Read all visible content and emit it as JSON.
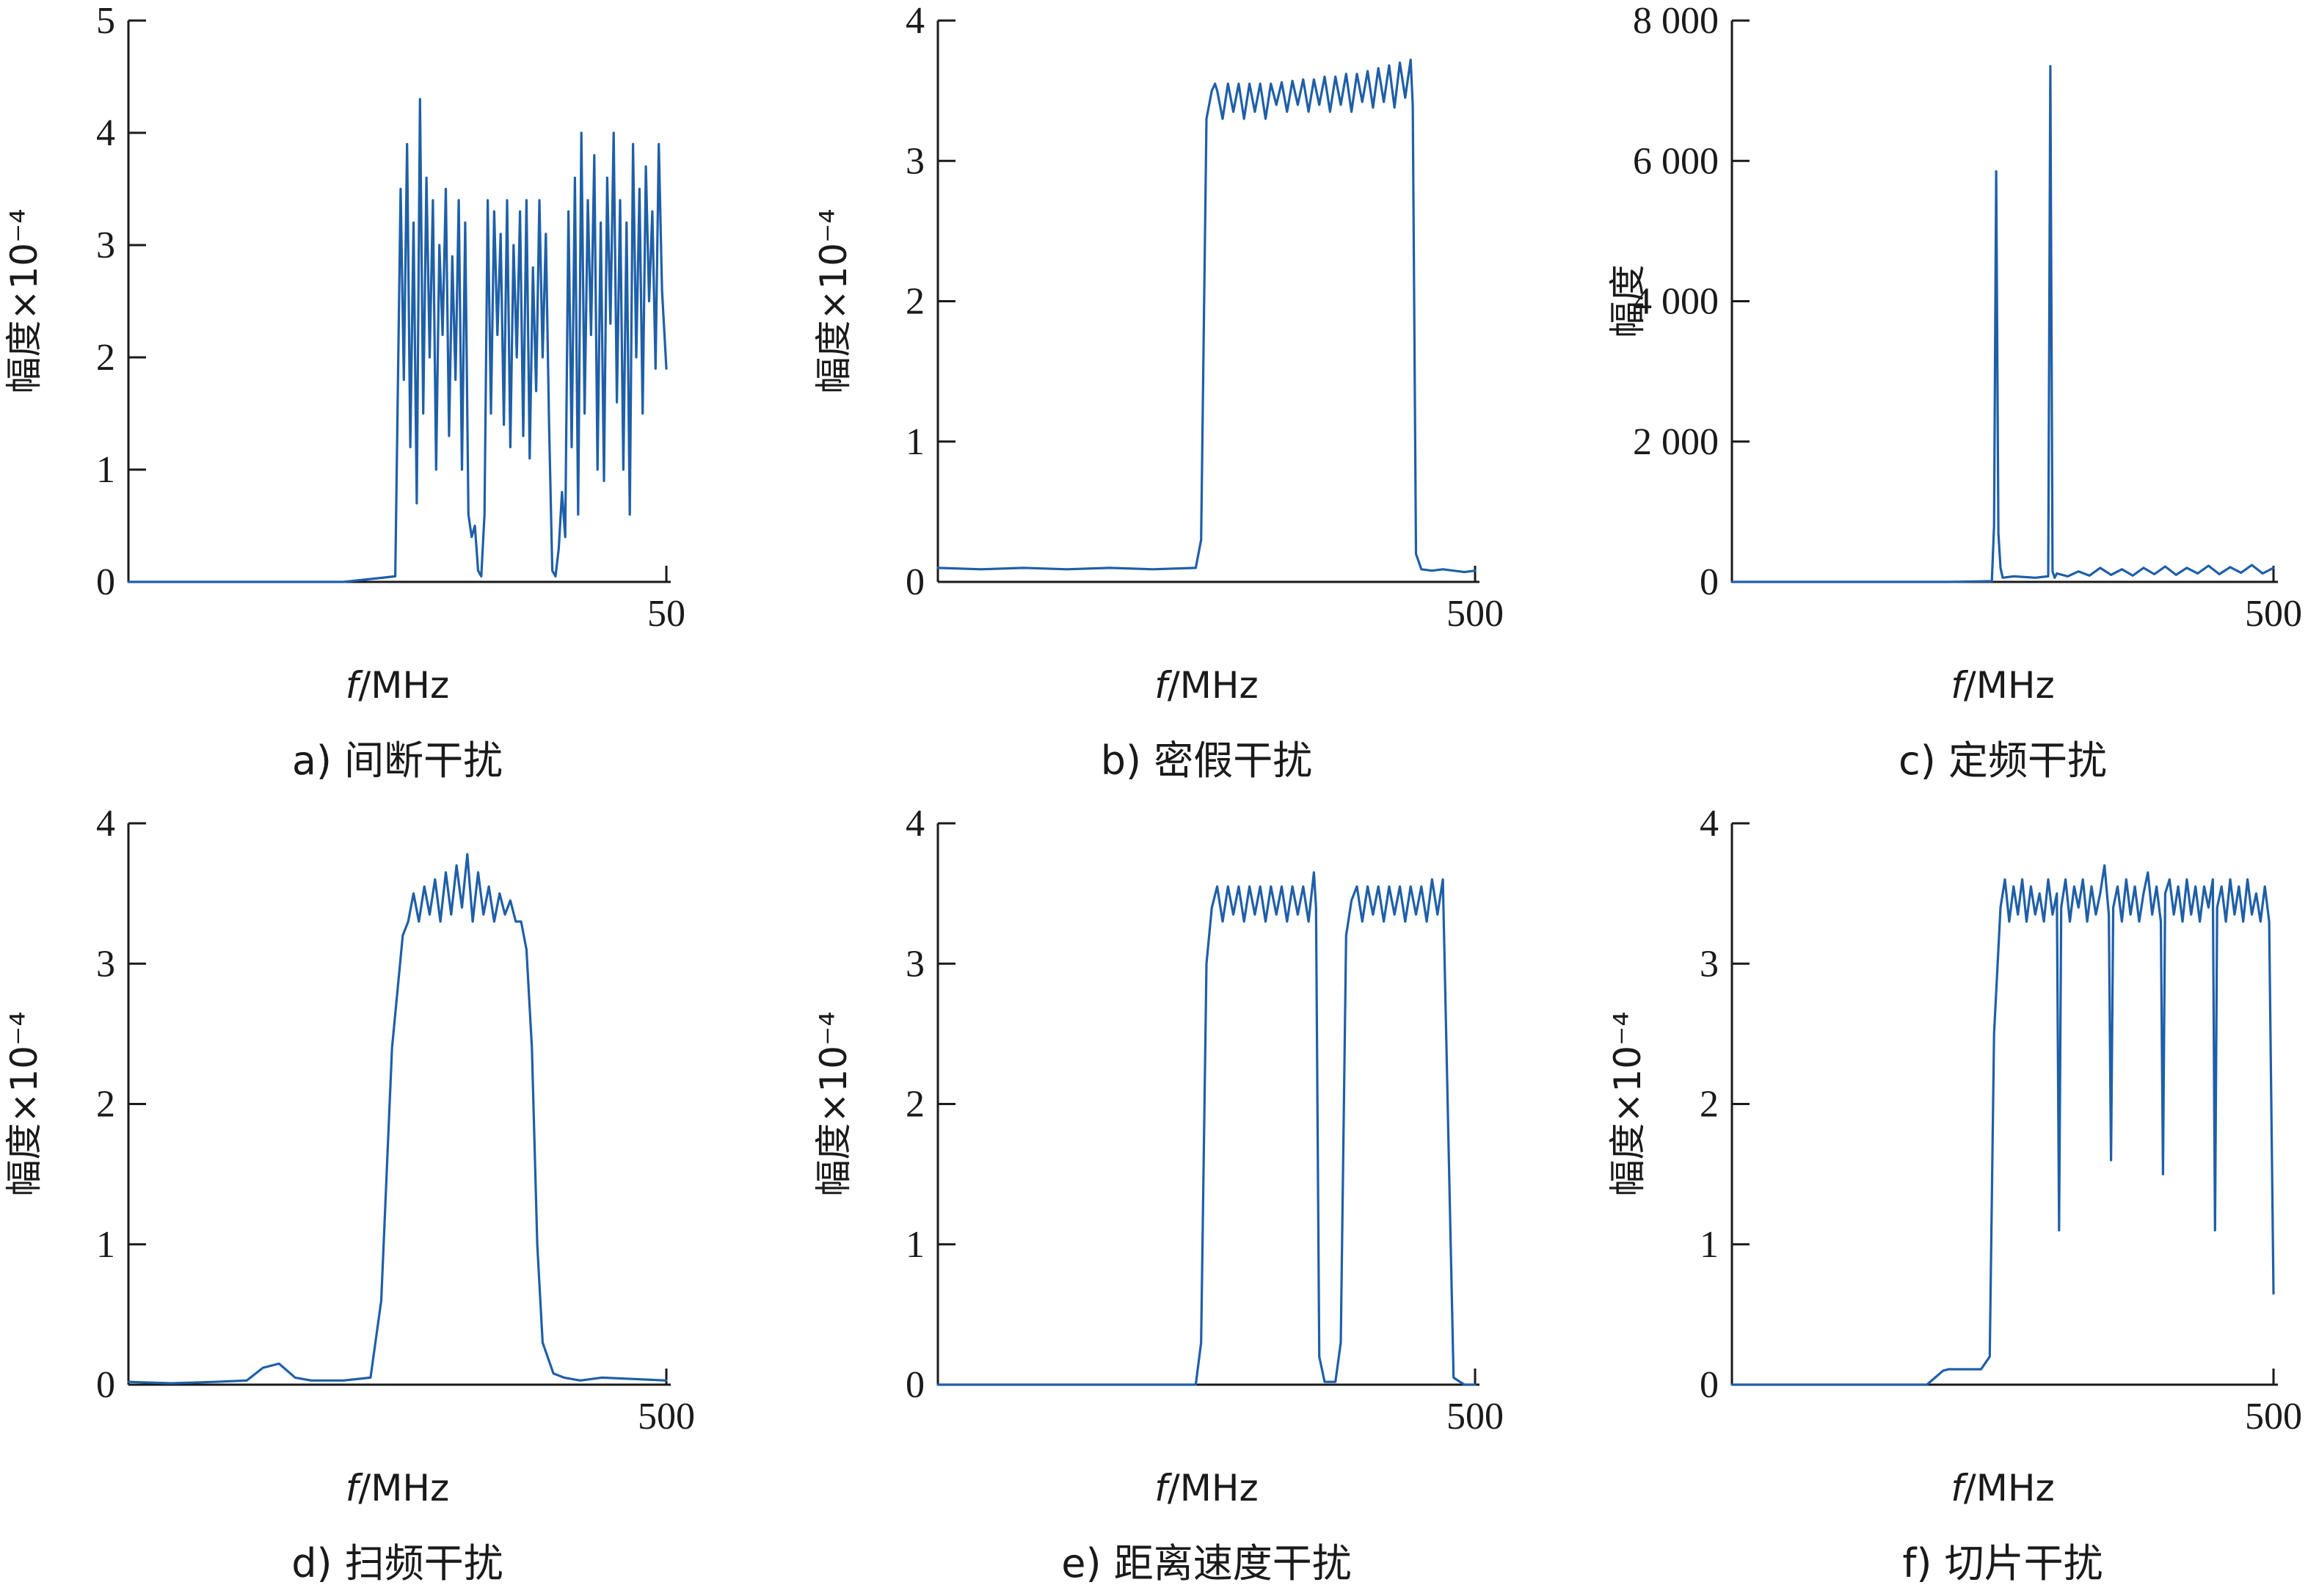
{
  "chart_data": [
    {
      "type": "line",
      "caption": "a) 间断干扰",
      "ylabel": "幅度×10⁻⁴",
      "xlabel_italic": "f",
      "xlabel_rest": "/MHz",
      "xlim": [
        0,
        50
      ],
      "ylim": [
        0,
        5
      ],
      "yticks": [
        0,
        1,
        2,
        3,
        4,
        5
      ],
      "ytick_labels": [
        "0",
        "1",
        "2",
        "3",
        "4",
        "5"
      ],
      "xticks": [
        50
      ],
      "xtick_labels": [
        "50"
      ],
      "color": "#1f5fa8",
      "x": [
        0,
        20,
        24.8,
        25.3,
        25.6,
        25.9,
        26.2,
        26.5,
        26.8,
        27.1,
        27.4,
        27.7,
        28.0,
        28.3,
        28.6,
        28.9,
        29.2,
        29.5,
        29.8,
        30.1,
        30.4,
        30.7,
        31.0,
        31.3,
        31.6,
        31.9,
        32.2,
        32.5,
        32.8,
        33.1,
        33.4,
        33.7,
        34.0,
        34.3,
        34.6,
        34.9,
        35.2,
        35.5,
        35.8,
        36.1,
        36.4,
        36.7,
        37.0,
        37.3,
        37.6,
        37.9,
        38.2,
        38.5,
        38.8,
        39.1,
        39.4,
        39.7,
        40.0,
        40.3,
        40.6,
        40.9,
        41.2,
        41.5,
        41.8,
        42.1,
        42.4,
        42.7,
        43.0,
        43.3,
        43.6,
        43.9,
        44.2,
        44.5,
        44.8,
        45.1,
        45.4,
        45.7,
        46.0,
        46.3,
        46.6,
        46.9,
        47.2,
        47.5,
        47.8,
        48.1,
        48.4,
        48.7,
        49.0,
        49.3,
        49.6,
        50
      ],
      "y": [
        0,
        0,
        0.05,
        3.5,
        1.8,
        3.9,
        1.2,
        3.2,
        0.7,
        4.3,
        1.5,
        3.6,
        2.0,
        3.4,
        1.0,
        3.0,
        2.2,
        3.5,
        1.3,
        2.9,
        1.8,
        3.4,
        1.0,
        3.2,
        0.6,
        0.4,
        0.5,
        0.1,
        0.05,
        0.6,
        3.4,
        1.5,
        3.3,
        2.2,
        3.1,
        1.4,
        3.4,
        1.2,
        3.0,
        2.0,
        3.3,
        1.3,
        3.4,
        1.1,
        2.8,
        1.7,
        3.4,
        2.0,
        3.1,
        1.4,
        0.1,
        0.05,
        0.3,
        0.8,
        0.4,
        3.3,
        1.2,
        3.6,
        0.6,
        4.0,
        1.5,
        3.4,
        2.2,
        3.8,
        1.0,
        3.2,
        0.9,
        3.6,
        2.3,
        4.0,
        1.6,
        3.4,
        1.0,
        3.2,
        0.6,
        3.9,
        2.0,
        3.5,
        1.5,
        3.7,
        2.5,
        3.3,
        1.9,
        3.9,
        2.6,
        1.9
      ]
    },
    {
      "type": "line",
      "caption": "b) 密假干扰",
      "ylabel": "幅度×10⁻⁴",
      "xlabel_italic": "f",
      "xlabel_rest": "/MHz",
      "xlim": [
        0,
        500
      ],
      "ylim": [
        0,
        4
      ],
      "yticks": [
        0,
        1,
        2,
        3,
        4
      ],
      "ytick_labels": [
        "0",
        "1",
        "2",
        "3",
        "4"
      ],
      "xticks": [
        500
      ],
      "xtick_labels": [
        "500"
      ],
      "color": "#1f5fa8",
      "x": [
        0,
        40,
        80,
        120,
        160,
        200,
        240,
        245,
        250,
        255,
        258,
        260,
        265,
        270,
        275,
        280,
        285,
        290,
        295,
        300,
        305,
        310,
        315,
        320,
        325,
        330,
        335,
        340,
        345,
        350,
        355,
        360,
        365,
        370,
        375,
        380,
        385,
        390,
        395,
        400,
        405,
        410,
        415,
        420,
        425,
        430,
        435,
        440,
        442,
        445,
        450,
        460,
        470,
        480,
        490,
        500
      ],
      "y": [
        0.1,
        0.09,
        0.1,
        0.09,
        0.1,
        0.09,
        0.1,
        0.3,
        3.3,
        3.5,
        3.55,
        3.5,
        3.3,
        3.55,
        3.35,
        3.55,
        3.3,
        3.55,
        3.35,
        3.55,
        3.3,
        3.55,
        3.4,
        3.56,
        3.35,
        3.57,
        3.4,
        3.58,
        3.35,
        3.58,
        3.4,
        3.6,
        3.35,
        3.6,
        3.4,
        3.62,
        3.35,
        3.62,
        3.42,
        3.64,
        3.38,
        3.66,
        3.42,
        3.68,
        3.38,
        3.7,
        3.45,
        3.72,
        3.4,
        0.2,
        0.09,
        0.08,
        0.09,
        0.08,
        0.07,
        0.08
      ]
    },
    {
      "type": "line",
      "caption": "c) 定频干扰",
      "ylabel": "幅度",
      "xlabel_italic": "f",
      "xlabel_rest": "/MHz",
      "xlim": [
        0,
        500
      ],
      "ylim": [
        0,
        8000
      ],
      "yticks": [
        0,
        2000,
        4000,
        6000,
        8000
      ],
      "ytick_labels": [
        "0",
        "2 000",
        "4 000",
        "6 000",
        "8 000"
      ],
      "xticks": [
        500
      ],
      "xtick_labels": [
        "500"
      ],
      "color": "#1f5fa8",
      "x": [
        0,
        100,
        200,
        240,
        242,
        244,
        246,
        248,
        250,
        260,
        280,
        292,
        294,
        296,
        298,
        300,
        310,
        320,
        330,
        340,
        350,
        360,
        370,
        380,
        390,
        400,
        410,
        420,
        430,
        440,
        450,
        460,
        470,
        480,
        490,
        500
      ],
      "y": [
        0,
        0,
        0,
        10,
        800,
        5850,
        700,
        200,
        60,
        80,
        60,
        80,
        7350,
        150,
        60,
        120,
        80,
        150,
        90,
        200,
        100,
        180,
        90,
        200,
        110,
        220,
        100,
        200,
        120,
        230,
        110,
        210,
        130,
        240,
        120,
        200
      ]
    },
    {
      "type": "line",
      "caption": "d) 扫频干扰",
      "ylabel": "幅度×10⁻⁴",
      "xlabel_italic": "f",
      "xlabel_rest": "/MHz",
      "xlim": [
        0,
        500
      ],
      "ylim": [
        0,
        4
      ],
      "yticks": [
        0,
        1,
        2,
        3,
        4
      ],
      "ytick_labels": [
        "0",
        "1",
        "2",
        "3",
        "4"
      ],
      "xticks": [
        500
      ],
      "xtick_labels": [
        "500"
      ],
      "color": "#1f5fa8",
      "x": [
        0,
        40,
        80,
        110,
        125,
        140,
        155,
        170,
        200,
        225,
        235,
        245,
        255,
        260,
        265,
        270,
        275,
        280,
        285,
        290,
        295,
        300,
        305,
        310,
        315,
        320,
        325,
        330,
        335,
        340,
        345,
        350,
        355,
        360,
        365,
        370,
        375,
        380,
        385,
        395,
        405,
        420,
        440,
        470,
        500
      ],
      "y": [
        0.02,
        0.01,
        0.02,
        0.03,
        0.12,
        0.15,
        0.05,
        0.03,
        0.03,
        0.05,
        0.6,
        2.4,
        3.2,
        3.3,
        3.5,
        3.3,
        3.55,
        3.35,
        3.6,
        3.3,
        3.65,
        3.35,
        3.7,
        3.4,
        3.78,
        3.3,
        3.65,
        3.35,
        3.55,
        3.3,
        3.5,
        3.35,
        3.45,
        3.3,
        3.3,
        3.1,
        2.4,
        1.0,
        0.3,
        0.08,
        0.05,
        0.03,
        0.05,
        0.04,
        0.03
      ]
    },
    {
      "type": "line",
      "caption": "e) 距离速度干扰",
      "ylabel": "幅度×10⁻⁴",
      "xlabel_italic": "f",
      "xlabel_rest": "/MHz",
      "xlim": [
        0,
        500
      ],
      "ylim": [
        0,
        4
      ],
      "yticks": [
        0,
        1,
        2,
        3,
        4
      ],
      "ytick_labels": [
        "0",
        "1",
        "2",
        "3",
        "4"
      ],
      "xticks": [
        500
      ],
      "xtick_labels": [
        "500"
      ],
      "color": "#1f5fa8",
      "x": [
        0,
        80,
        160,
        240,
        245,
        250,
        255,
        260,
        265,
        270,
        275,
        280,
        285,
        290,
        295,
        300,
        305,
        310,
        315,
        320,
        325,
        330,
        335,
        340,
        345,
        350,
        352,
        355,
        360,
        370,
        375,
        380,
        385,
        390,
        395,
        400,
        405,
        410,
        415,
        420,
        425,
        430,
        435,
        440,
        445,
        450,
        455,
        460,
        465,
        470,
        480,
        490,
        500
      ],
      "y": [
        0,
        0,
        0,
        0,
        0.3,
        3.0,
        3.4,
        3.55,
        3.3,
        3.55,
        3.35,
        3.55,
        3.3,
        3.55,
        3.35,
        3.55,
        3.3,
        3.55,
        3.35,
        3.55,
        3.3,
        3.55,
        3.35,
        3.55,
        3.3,
        3.65,
        3.4,
        0.2,
        0.02,
        0.02,
        0.3,
        3.2,
        3.45,
        3.55,
        3.3,
        3.55,
        3.35,
        3.55,
        3.3,
        3.55,
        3.35,
        3.55,
        3.3,
        3.55,
        3.35,
        3.55,
        3.3,
        3.6,
        3.35,
        3.6,
        0.05,
        0,
        0
      ]
    },
    {
      "type": "line",
      "caption": "f) 切片干扰",
      "ylabel": "幅度×10⁻⁴",
      "xlabel_italic": "f",
      "xlabel_rest": "/MHz",
      "xlim": [
        0,
        500
      ],
      "ylim": [
        0,
        4
      ],
      "yticks": [
        0,
        1,
        2,
        3,
        4
      ],
      "ytick_labels": [
        "0",
        "1",
        "2",
        "3",
        "4"
      ],
      "xticks": [
        500
      ],
      "xtick_labels": [
        "500"
      ],
      "color": "#1f5fa8",
      "x": [
        0,
        60,
        120,
        180,
        195,
        200,
        230,
        238,
        242,
        248,
        252,
        256,
        260,
        264,
        268,
        272,
        276,
        280,
        284,
        288,
        292,
        296,
        300,
        302,
        304,
        308,
        312,
        316,
        320,
        324,
        328,
        332,
        336,
        340,
        344,
        348,
        350,
        352,
        356,
        360,
        364,
        368,
        372,
        376,
        380,
        384,
        388,
        392,
        396,
        398,
        400,
        404,
        408,
        412,
        416,
        420,
        424,
        428,
        432,
        436,
        440,
        444,
        446,
        448,
        452,
        456,
        460,
        464,
        468,
        472,
        476,
        480,
        484,
        488,
        492,
        496,
        500
      ],
      "y": [
        0,
        0,
        0,
        0,
        0.1,
        0.11,
        0.11,
        0.2,
        2.5,
        3.4,
        3.6,
        3.3,
        3.55,
        3.35,
        3.6,
        3.3,
        3.55,
        3.35,
        3.5,
        3.3,
        3.6,
        3.35,
        3.5,
        1.1,
        3.4,
        3.6,
        3.3,
        3.55,
        3.4,
        3.6,
        3.3,
        3.55,
        3.35,
        3.5,
        3.7,
        3.35,
        1.6,
        3.4,
        3.55,
        3.3,
        3.6,
        3.35,
        3.55,
        3.3,
        3.5,
        3.65,
        3.35,
        3.55,
        3.3,
        1.5,
        3.5,
        3.6,
        3.35,
        3.55,
        3.3,
        3.6,
        3.35,
        3.55,
        3.3,
        3.55,
        3.4,
        3.6,
        1.1,
        3.4,
        3.55,
        3.3,
        3.6,
        3.35,
        3.55,
        3.3,
        3.6,
        3.35,
        3.5,
        3.3,
        3.55,
        3.3,
        0.65
      ]
    }
  ]
}
